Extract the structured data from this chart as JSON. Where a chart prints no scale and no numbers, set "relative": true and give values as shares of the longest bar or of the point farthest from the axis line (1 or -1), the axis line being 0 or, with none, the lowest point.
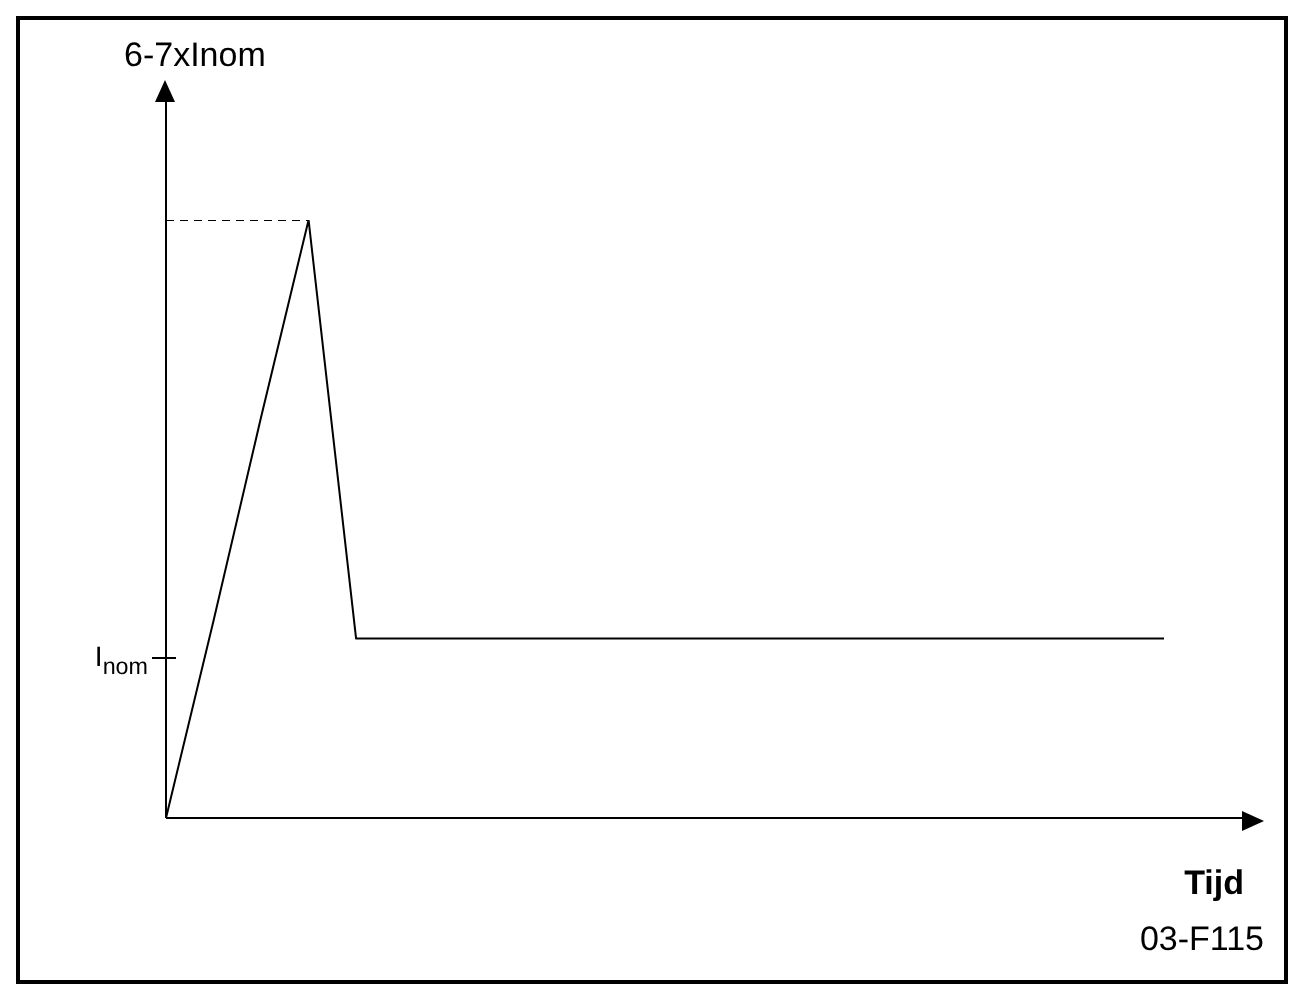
{
  "chart_data": {
    "type": "line",
    "relative": true,
    "ylabel": "6-7xInom",
    "xlabel": "Tijd",
    "categories": [
      null,
      null,
      null,
      null,
      null,
      null,
      null,
      null,
      null,
      null,
      null,
      null,
      null,
      null,
      null,
      null,
      null,
      null,
      null,
      null,
      null,
      null
    ],
    "series": [
      {
        "color": "#000000",
        "values": [
          0,
          0.33,
          0.67,
          1,
          0.3,
          0.3,
          0.3,
          0.3,
          0.3,
          0.3,
          0.3,
          0.3,
          0.3,
          0.3,
          0.3,
          0.3,
          0.3,
          0.3,
          0.3,
          0.3,
          0.3,
          0.3
        ]
      },
      {
        "color": "#000000",
        "values": [
          1,
          1,
          1,
          1,
          null,
          null,
          null,
          null,
          null,
          null,
          null,
          null,
          null,
          null,
          null,
          null,
          null,
          null,
          null,
          null,
          null,
          null
        ],
        "line_style": "dashed"
      }
    ],
    "annotations": [
      "I$_{nom}$",
      "03-F115"
    ]
  }
}
